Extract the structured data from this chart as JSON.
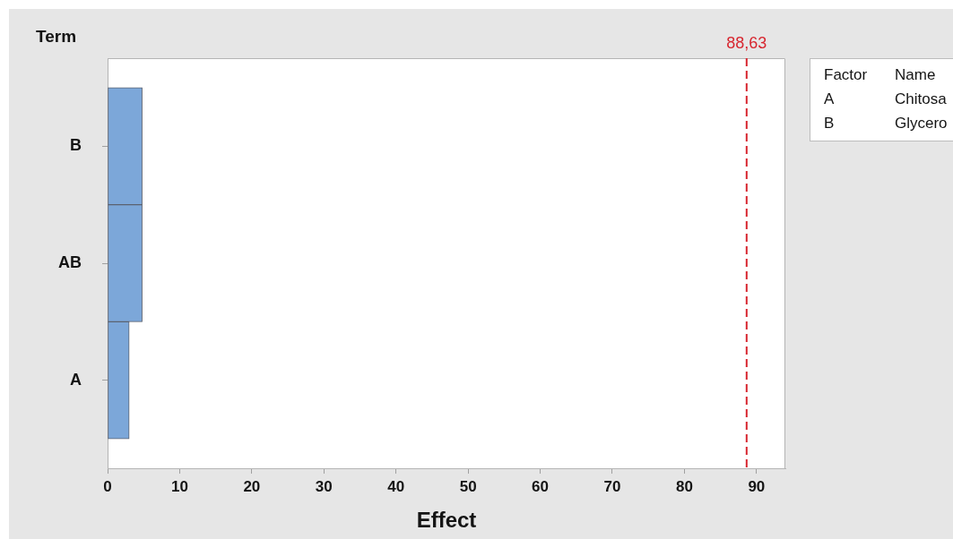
{
  "chart_data": {
    "type": "bar",
    "orientation": "horizontal",
    "ylabel": "Term",
    "xlabel": "Effect",
    "categories": [
      "B",
      "AB",
      "A"
    ],
    "values": [
      4.8,
      4.8,
      3.0
    ],
    "color": "#7ca7d9",
    "xlim": [
      0,
      94
    ],
    "xticks": [
      0,
      10,
      20,
      30,
      40,
      50,
      60,
      70,
      80,
      90
    ],
    "ref_lines": [
      {
        "axis": "x",
        "value": 88.63,
        "label": "88,63",
        "color": "#d7262f",
        "line_style": "dashed"
      }
    ],
    "annotations": [
      "Factor",
      "Name",
      "A",
      "Chitosa",
      "B",
      "Glycero"
    ]
  }
}
